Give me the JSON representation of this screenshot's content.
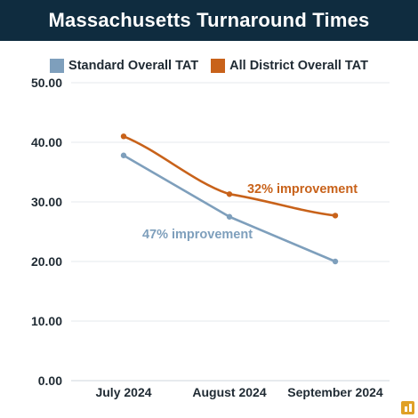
{
  "chart_data": {
    "type": "line",
    "title": "Massachusetts Turnaround Times",
    "categories": [
      "July 2024",
      "August 2024",
      "September 2024"
    ],
    "series": [
      {
        "name": "Standard Overall TAT",
        "values": [
          37.8,
          27.5,
          20.0
        ],
        "color": "#7e9fbc"
      },
      {
        "name": "All District Overall TAT",
        "values": [
          41.0,
          31.3,
          27.7
        ],
        "color": "#c8621a"
      }
    ],
    "ylim": [
      0,
      50
    ],
    "yticks": [
      "0.00",
      "10.00",
      "20.00",
      "30.00",
      "40.00",
      "50.00"
    ],
    "grid": true,
    "legend_position": "top",
    "annotations": [
      {
        "text": "47% improvement",
        "series": "Standard Overall TAT",
        "color": "#7e9fbc"
      },
      {
        "text": "32% improvement",
        "series": "All District Overall TAT",
        "color": "#c8621a"
      }
    ]
  },
  "logo": {
    "icon": "bar-chart-logo-icon",
    "color": "#e0a127"
  }
}
